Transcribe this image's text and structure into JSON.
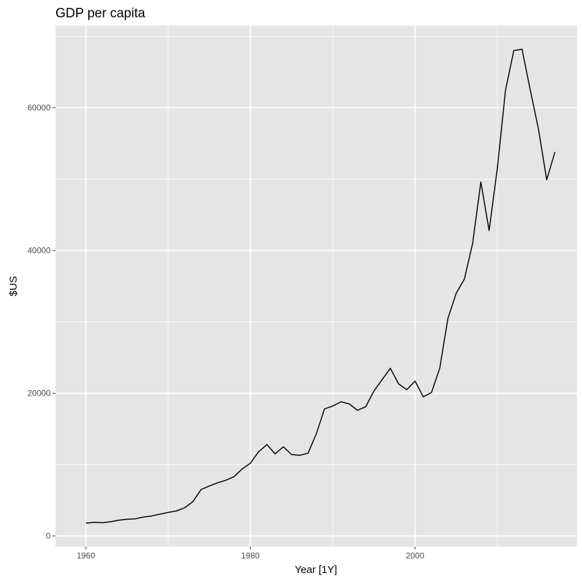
{
  "chart_data": {
    "type": "line",
    "title": "GDP per capita",
    "xlabel": "Year [1Y]",
    "ylabel": "$US",
    "xlim": [
      1956.3,
      2019.7
    ],
    "ylim": [
      -1500,
      71500
    ],
    "x_ticks": [
      1960,
      1980,
      2000
    ],
    "x_tick_labels": [
      "1960",
      "1980",
      "2000"
    ],
    "x_minor_ticks": [
      1970,
      1990,
      2010
    ],
    "y_ticks": [
      0,
      20000,
      40000,
      60000
    ],
    "y_tick_labels": [
      "0",
      "20000",
      "40000",
      "60000"
    ],
    "y_minor_ticks": [
      10000,
      30000,
      50000,
      70000
    ],
    "grid": true,
    "colors": {
      "panel": "#e5e5e5",
      "grid": "#ffffff",
      "line": "#000000",
      "tick_text": "#4d4d4d"
    },
    "series": [
      {
        "x": [
          1960,
          1961,
          1962,
          1963,
          1964,
          1965,
          1966,
          1967,
          1968,
          1969,
          1970,
          1971,
          1972,
          1973,
          1974,
          1975,
          1976,
          1977,
          1978,
          1979,
          1980,
          1981,
          1982,
          1983,
          1984,
          1985,
          1986,
          1987,
          1988,
          1989,
          1990,
          1991,
          1992,
          1993,
          1994,
          1995,
          1996,
          1997,
          1998,
          1999,
          2000,
          2001,
          2002,
          2003,
          2004,
          2005,
          2006,
          2007,
          2008,
          2009,
          2010,
          2011,
          2012,
          2013,
          2014,
          2015,
          2016,
          2017
        ],
        "values": [
          1800,
          1900,
          1850,
          2000,
          2200,
          2350,
          2400,
          2650,
          2800,
          3050,
          3300,
          3500,
          3950,
          4800,
          6500,
          7000,
          7450,
          7800,
          8300,
          9400,
          10200,
          11800,
          12800,
          11500,
          12500,
          11400,
          11300,
          11600,
          14300,
          17800,
          18200,
          18800,
          18500,
          17600,
          18100,
          20300,
          21900,
          23500,
          21300,
          20500,
          21700,
          19500,
          20100,
          23500,
          30500,
          34000,
          36000,
          41000,
          49600,
          42800,
          51500,
          62500,
          68000,
          68200,
          62500,
          57000,
          49900,
          53800
        ]
      }
    ]
  }
}
